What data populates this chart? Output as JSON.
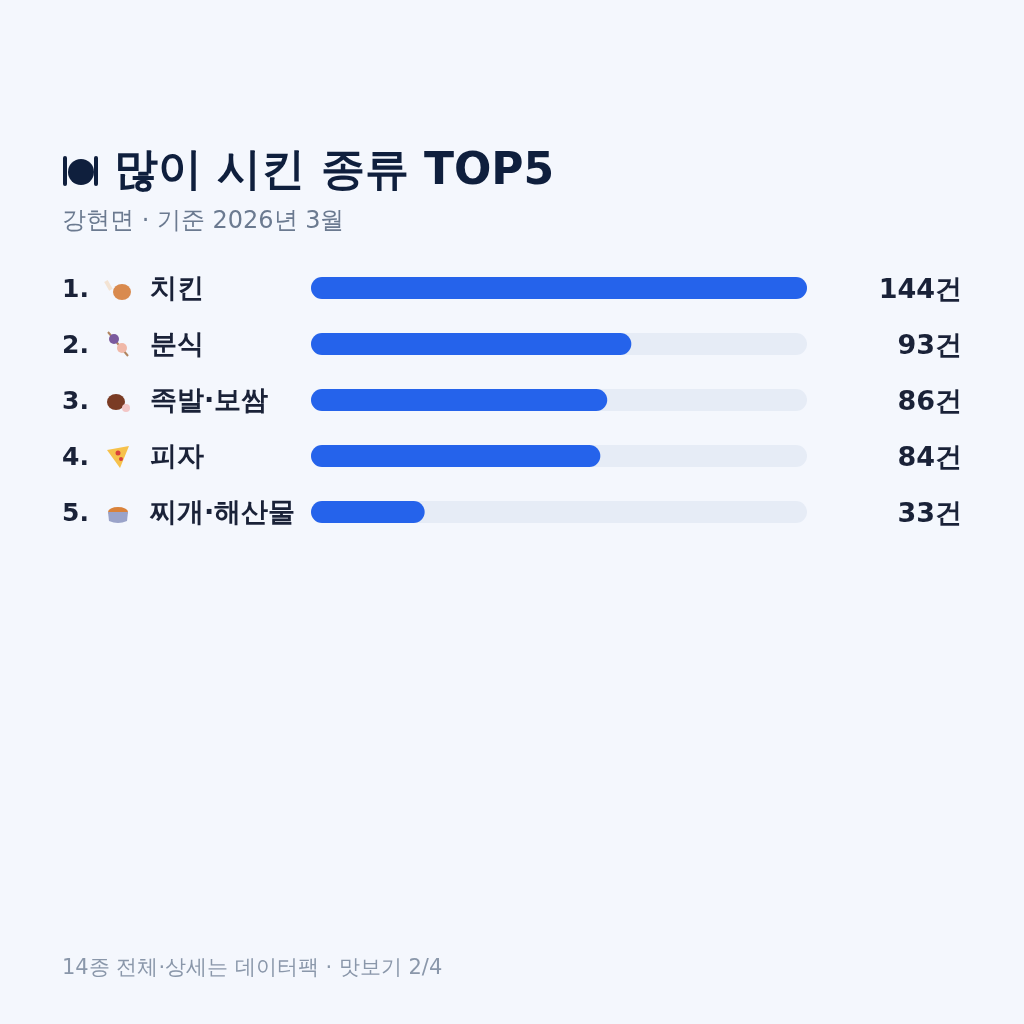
{
  "chart_data": {
    "type": "bar",
    "orientation": "horizontal",
    "title": "많이 시킨 종류 TOP5",
    "subtitle": "강현면 · 기준 2026년 3월",
    "categories": [
      "1. 치킨",
      "2. 분식",
      "3. 족발·보쌈",
      "4. 피자",
      "5. 찌개·해산물"
    ],
    "values": [
      144,
      93,
      86,
      84,
      33
    ],
    "value_labels": [
      "144건",
      "93건",
      "86건",
      "84건",
      "33건"
    ],
    "color": "#2563eb",
    "xlim": [
      0,
      144
    ],
    "tick_labels": "y",
    "annotations": [
      "14종 전체·상세는 데이터팩 · 맛보기 2/4"
    ]
  }
}
